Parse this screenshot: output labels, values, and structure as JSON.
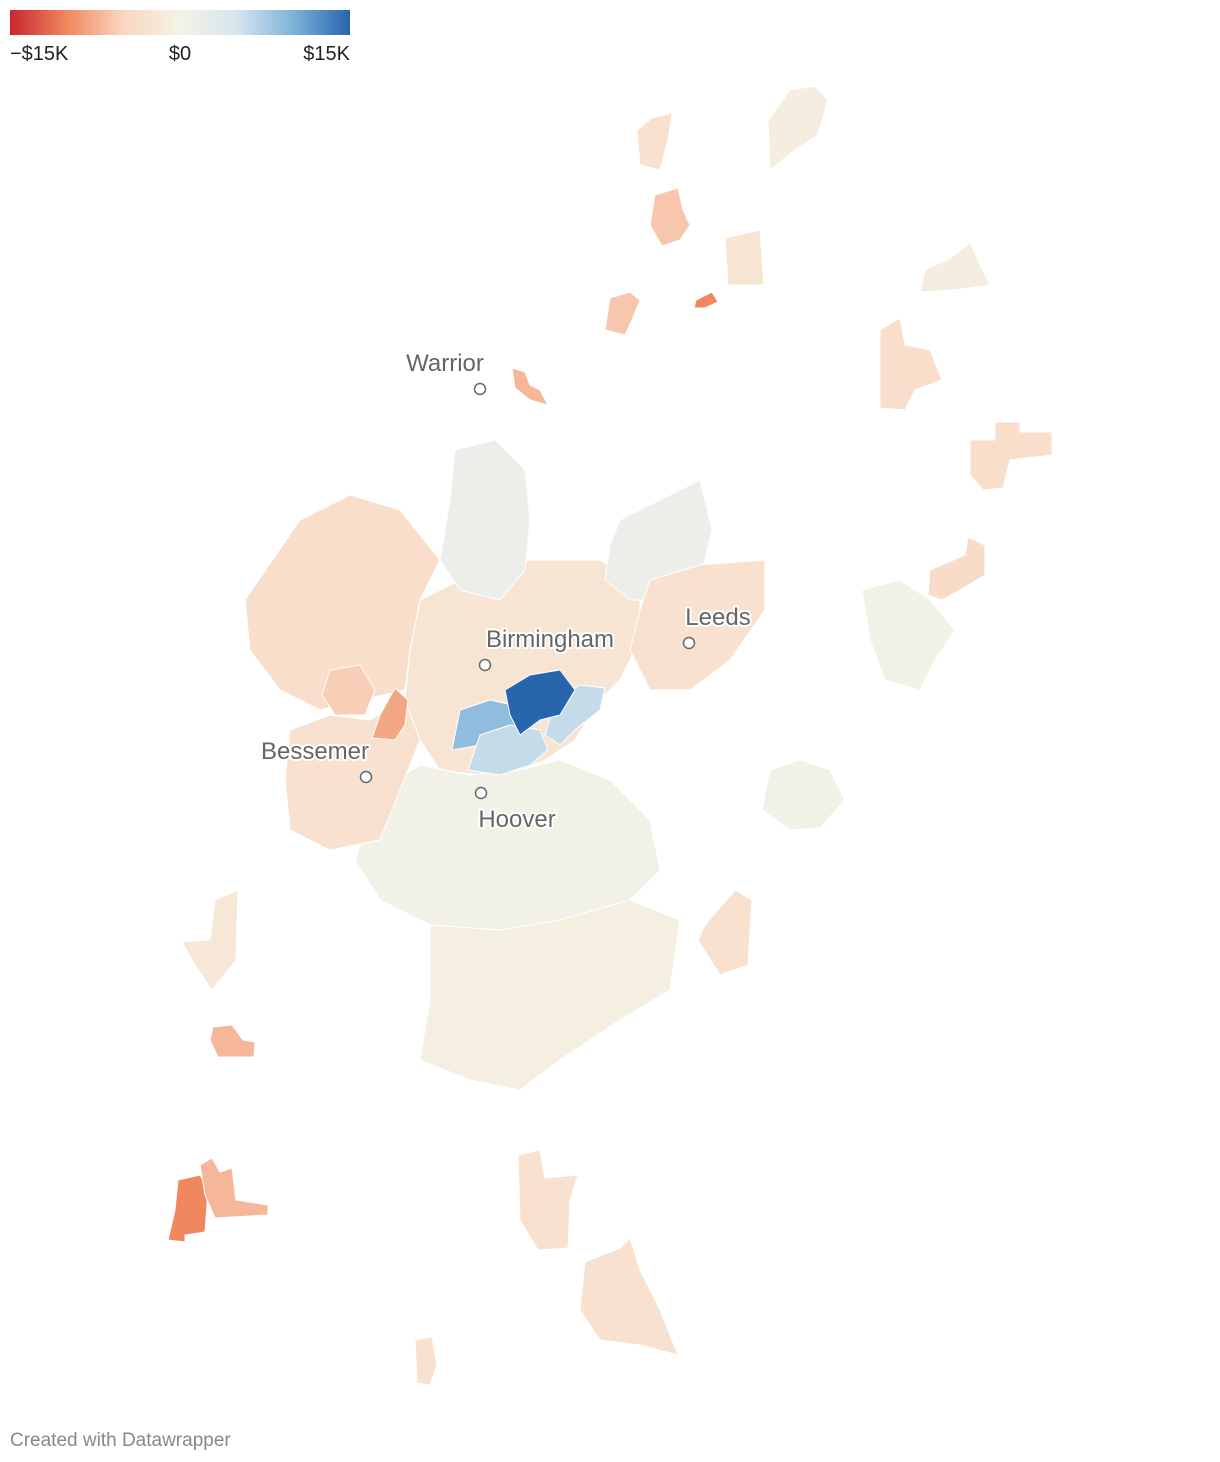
{
  "legend": {
    "stops": [
      {
        "value": -15000,
        "label": "−$15K"
      },
      {
        "value": 0,
        "label": "$0"
      },
      {
        "value": 15000,
        "label": "$15K"
      }
    ],
    "colors": [
      "#c8262f",
      "#f0875e",
      "#fad6c0",
      "#f4f2e6",
      "#d5e6ef",
      "#7fb2d8",
      "#2765ac"
    ]
  },
  "cities": [
    {
      "name": "Warrior"
    },
    {
      "name": "Birmingham"
    },
    {
      "name": "Leeds"
    },
    {
      "name": "Bessemer"
    },
    {
      "name": "Hoover"
    }
  ],
  "regions": {
    "values": [
      -2500,
      15000,
      9000,
      6000,
      6000,
      500,
      1500,
      1500,
      -3000,
      -3500,
      -3000,
      -8000,
      -5500,
      -500,
      300,
      -3500,
      -3500,
      -4000,
      500,
      -6000,
      -6000,
      -10000,
      -2500,
      -7000,
      -7000,
      -10000,
      -7000,
      -3000,
      -3000,
      -3000,
      -3000,
      -800,
      -800,
      -3000,
      -2000
    ]
  },
  "footer": "Created with Datawrapper"
}
